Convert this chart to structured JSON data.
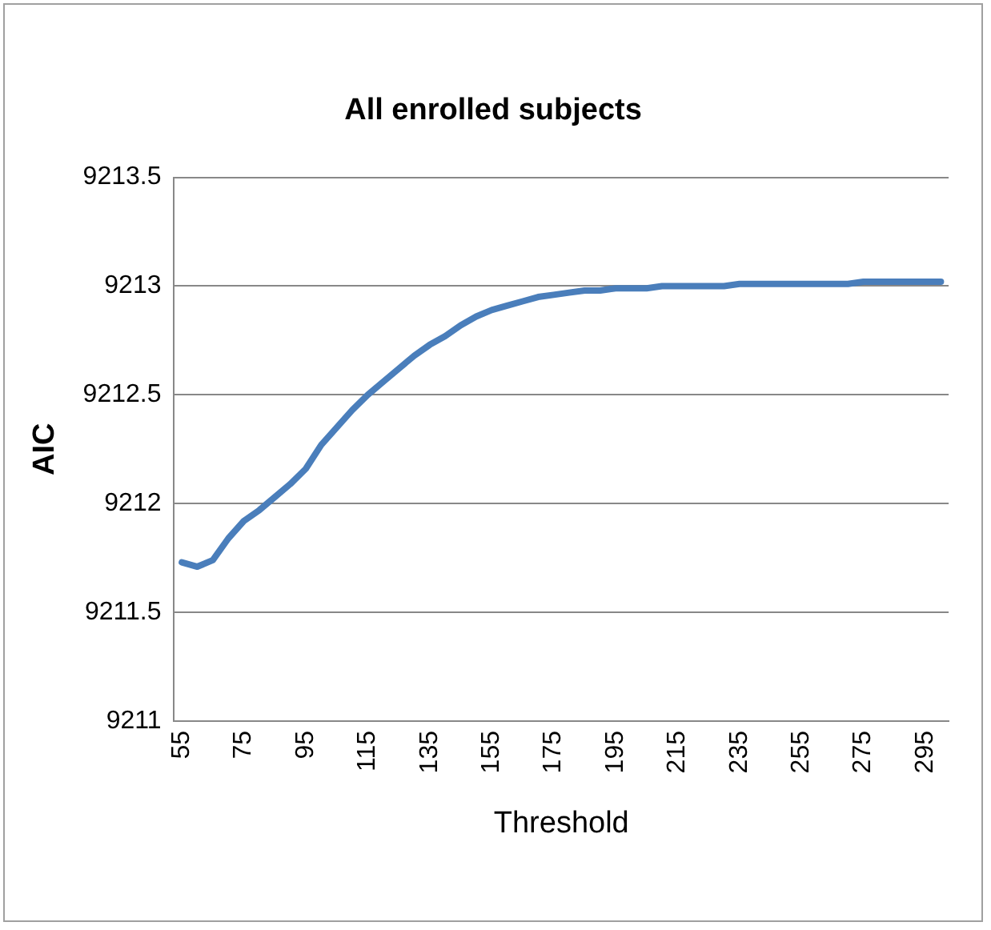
{
  "chart_data": {
    "type": "line",
    "title": "All enrolled subjects",
    "xlabel": "Threshold",
    "ylabel": "AIC",
    "categories": [
      "55",
      null,
      null,
      null,
      "75",
      null,
      null,
      null,
      "95",
      null,
      null,
      null,
      "115",
      null,
      null,
      null,
      "135",
      null,
      null,
      null,
      "155",
      null,
      null,
      null,
      "175",
      null,
      null,
      null,
      "195",
      null,
      null,
      null,
      "215",
      null,
      null,
      null,
      "235",
      null,
      null,
      null,
      "255",
      null,
      null,
      null,
      "275",
      null,
      null,
      null,
      "295",
      null
    ],
    "series": [
      {
        "color": "#4a7ebb",
        "values": [
          9211.73,
          9211.71,
          9211.74,
          9211.84,
          9211.92,
          9211.97,
          9212.03,
          9212.09,
          9212.16,
          9212.27,
          9212.35,
          9212.43,
          9212.5,
          9212.56,
          9212.62,
          9212.68,
          9212.73,
          9212.77,
          9212.82,
          9212.86,
          9212.89,
          9212.91,
          9212.93,
          9212.95,
          9212.96,
          9212.97,
          9212.98,
          9212.98,
          9212.99,
          9212.99,
          9212.99,
          9213,
          9213,
          9213,
          9213,
          9213,
          9213.01,
          9213.01,
          9213.01,
          9213.01,
          9213.01,
          9213.01,
          9213.01,
          9213.01,
          9213.02,
          9213.02,
          9213.02,
          9213.02,
          9213.02,
          9213.02
        ]
      }
    ],
    "ylim": [
      9211,
      9213.5
    ],
    "yticks": [
      9211,
      9211.5,
      9212,
      9212.5,
      9213,
      9213.5
    ],
    "grid": "y",
    "legend": false,
    "marker": "none",
    "line_style": "solid"
  }
}
